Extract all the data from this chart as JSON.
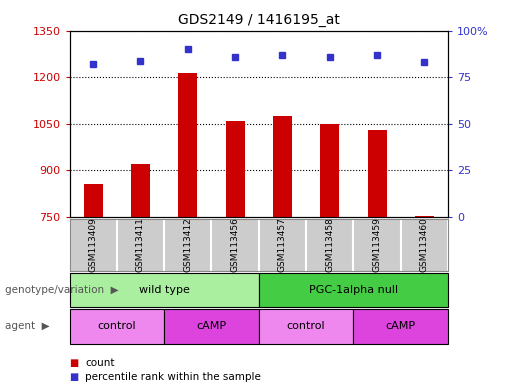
{
  "title": "GDS2149 / 1416195_at",
  "samples": [
    "GSM113409",
    "GSM113411",
    "GSM113412",
    "GSM113456",
    "GSM113457",
    "GSM113458",
    "GSM113459",
    "GSM113460"
  ],
  "counts": [
    855,
    920,
    1215,
    1058,
    1075,
    1048,
    1030,
    752
  ],
  "percentiles": [
    82,
    84,
    90,
    86,
    87,
    86,
    87,
    83
  ],
  "ylim_left": [
    750,
    1350
  ],
  "yticks_left": [
    750,
    900,
    1050,
    1200,
    1350
  ],
  "ylim_right": [
    0,
    100
  ],
  "yticks_right": [
    0,
    25,
    50,
    75,
    100
  ],
  "bar_color": "#cc0000",
  "dot_color": "#3333cc",
  "left_tick_color": "#cc0000",
  "right_tick_color": "#3333cc",
  "tick_area_color": "#cccccc",
  "tick_area_border": "#888888",
  "genotype_groups": [
    {
      "label": "wild type",
      "start": 0,
      "end": 4,
      "color": "#aaeea0"
    },
    {
      "label": "PGC-1alpha null",
      "start": 4,
      "end": 8,
      "color": "#44cc44"
    }
  ],
  "agent_groups": [
    {
      "label": "control",
      "start": 0,
      "end": 2,
      "color": "#ee88ee"
    },
    {
      "label": "cAMP",
      "start": 2,
      "end": 4,
      "color": "#dd44dd"
    },
    {
      "label": "control",
      "start": 4,
      "end": 6,
      "color": "#ee88ee"
    },
    {
      "label": "cAMP",
      "start": 6,
      "end": 8,
      "color": "#dd44dd"
    }
  ],
  "label_geno": "genotype/variation",
  "label_agent": "agent",
  "legend_count_color": "#cc0000",
  "legend_pct_color": "#3333cc",
  "bar_width": 0.4
}
